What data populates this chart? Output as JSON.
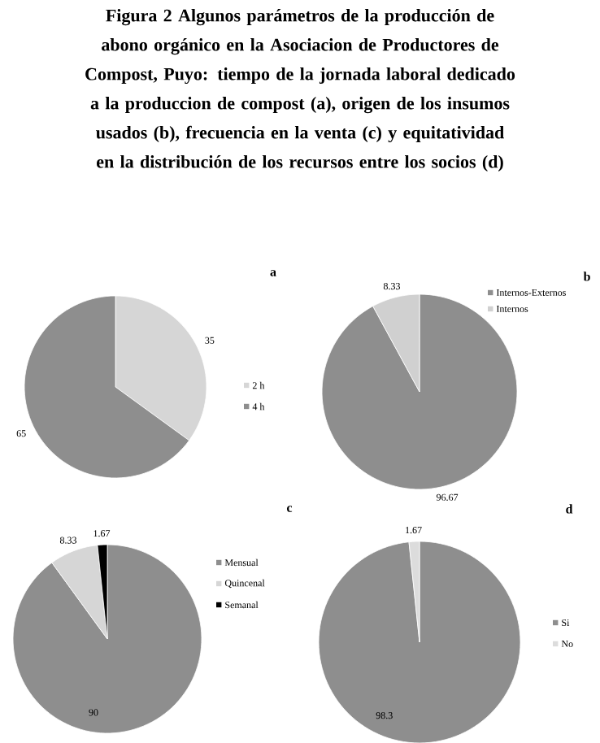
{
  "chart_data": [
    {
      "type": "other",
      "title": "Figura 2 Algunos parámetros de la producción de abono orgánico en la  Asociacion de Productores de Compost, Puyo: tiempo de la jornada laboral dedicado a la produccion de compost (a), origen de los insumos usados (b), frecuencia en la venta (c) y equitatividad en la distribución de los recursos entre los socios (d)"
    },
    {
      "type": "pie",
      "title": "a",
      "categories": [
        "2 h",
        "4 h"
      ],
      "values": [
        35,
        65
      ],
      "colors": [
        "#d6d6d6",
        "#8e8e8e"
      ],
      "data_labels": true,
      "legend": "right"
    },
    {
      "type": "pie",
      "title": "b",
      "categories": [
        "Internos-Externos",
        "Internos"
      ],
      "values": [
        96.67,
        8.33
      ],
      "colors": [
        "#8e8e8e",
        "#d0d0d0"
      ],
      "data_labels": true,
      "legend": "top right"
    },
    {
      "type": "pie",
      "title": "c",
      "categories": [
        "Mensual",
        "Quincenal",
        "Semanal"
      ],
      "values": [
        90,
        8.33,
        1.67
      ],
      "colors": [
        "#8e8e8e",
        "#d6d6d6",
        "#000000"
      ],
      "data_labels": true,
      "legend": "right"
    },
    {
      "type": "pie",
      "title": "d",
      "categories": [
        "Si",
        "No"
      ],
      "values": [
        98.3,
        1.67
      ],
      "colors": [
        "#8e8e8e",
        "#dcdcdc"
      ],
      "data_labels": true,
      "legend": "right"
    }
  ]
}
